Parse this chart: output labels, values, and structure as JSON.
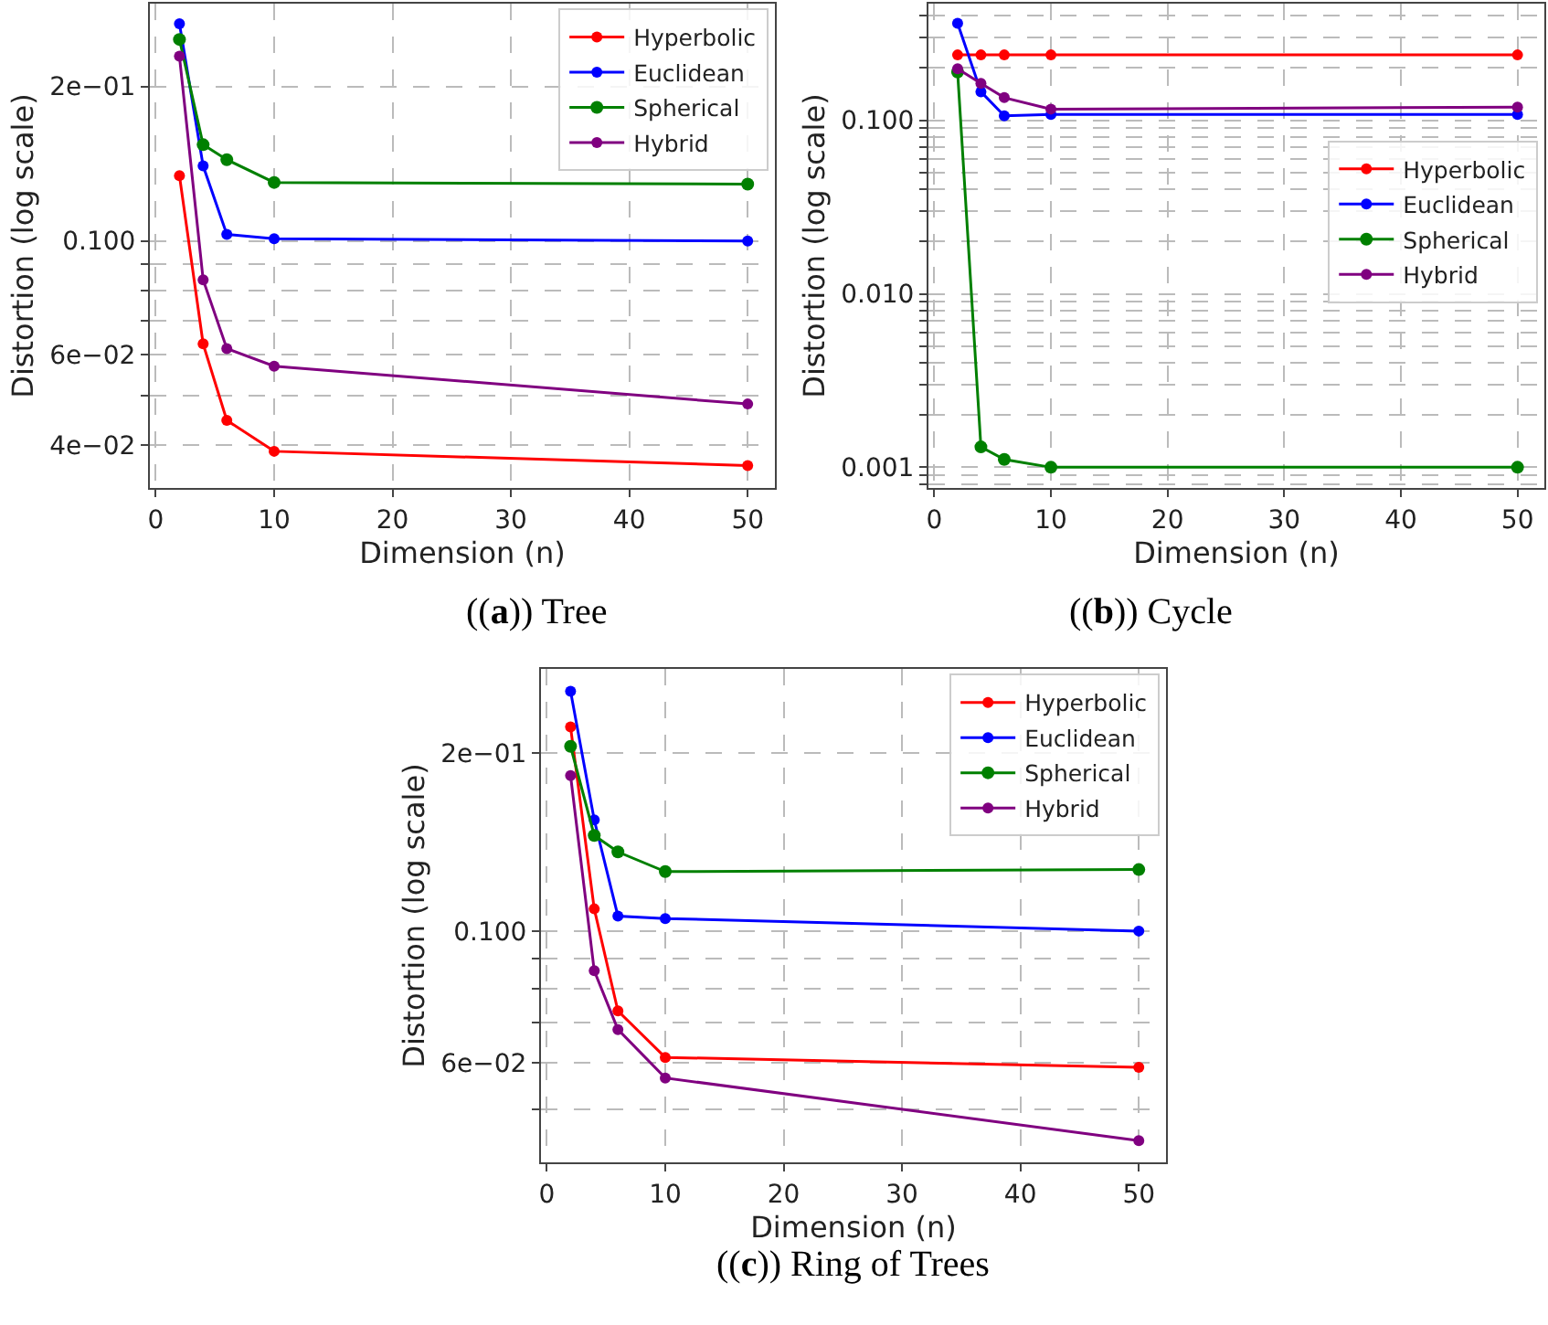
{
  "chart_data": [
    {
      "type": "line",
      "title": "((a)) Tree",
      "xlabel": "Dimension (n)",
      "ylabel": "Distortion (log scale)",
      "log": "y",
      "grid": true,
      "legend": "top right",
      "marker": "circle",
      "line_style": "solid",
      "x": [
        2,
        4,
        6,
        10,
        50
      ],
      "xlim": [
        -0.5,
        52.3
      ],
      "xticks": [
        0,
        10,
        20,
        30,
        40,
        50
      ],
      "ylim": [
        0.033,
        0.29
      ],
      "yticks": [
        {
          "value": 0.04,
          "label": "4e−02"
        },
        {
          "value": 0.05,
          "label": null
        },
        {
          "value": 0.06,
          "label": "6e−02"
        },
        {
          "value": 0.07,
          "label": null
        },
        {
          "value": 0.08,
          "label": null
        },
        {
          "value": 0.09,
          "label": null
        },
        {
          "value": 0.1,
          "label": "0.100"
        },
        {
          "value": 0.2,
          "label": "2e−01"
        }
      ],
      "series": [
        {
          "name": "Hyperbolic",
          "color": "#ff0000",
          "values": [
            0.134,
            0.063,
            0.0447,
            0.0389,
            0.0365
          ]
        },
        {
          "name": "Euclidean",
          "color": "#0000ff",
          "values": [
            0.265,
            0.14,
            0.103,
            0.101,
            0.1
          ]
        },
        {
          "name": "Spherical",
          "color": "#008000",
          "values": [
            0.247,
            0.154,
            0.144,
            0.13,
            0.129
          ]
        },
        {
          "name": "Hybrid",
          "color": "#800080",
          "values": [
            0.229,
            0.084,
            0.0617,
            0.057,
            0.0481
          ]
        }
      ]
    },
    {
      "type": "line",
      "title": "((b)) Cycle",
      "xlabel": "Dimension (n)",
      "ylabel": "Distortion (log scale)",
      "log": "y",
      "grid": true,
      "legend": "right",
      "marker": "circle",
      "line_style": "solid",
      "x": [
        2,
        4,
        6,
        10,
        50
      ],
      "xlim": [
        -0.5,
        52.3
      ],
      "xticks": [
        0,
        10,
        20,
        30,
        40,
        50
      ],
      "ylim": [
        0.00076,
        0.47
      ],
      "yticks": [
        {
          "value": 0.0008,
          "label": null
        },
        {
          "value": 0.0009,
          "label": null
        },
        {
          "value": 0.001,
          "label": "0.001"
        },
        {
          "value": 0.002,
          "label": null
        },
        {
          "value": 0.003,
          "label": null
        },
        {
          "value": 0.004,
          "label": null
        },
        {
          "value": 0.005,
          "label": null
        },
        {
          "value": 0.006,
          "label": null
        },
        {
          "value": 0.007,
          "label": null
        },
        {
          "value": 0.008,
          "label": null
        },
        {
          "value": 0.009,
          "label": null
        },
        {
          "value": 0.01,
          "label": "0.010"
        },
        {
          "value": 0.02,
          "label": null
        },
        {
          "value": 0.03,
          "label": null
        },
        {
          "value": 0.04,
          "label": null
        },
        {
          "value": 0.05,
          "label": null
        },
        {
          "value": 0.06,
          "label": null
        },
        {
          "value": 0.07,
          "label": null
        },
        {
          "value": 0.08,
          "label": null
        },
        {
          "value": 0.09,
          "label": null
        },
        {
          "value": 0.1,
          "label": "0.100"
        },
        {
          "value": 0.2,
          "label": null
        },
        {
          "value": 0.3,
          "label": null
        },
        {
          "value": 0.4,
          "label": null
        }
      ],
      "series": [
        {
          "name": "Hyperbolic",
          "color": "#ff0000",
          "values": [
            0.238,
            0.238,
            0.238,
            0.238,
            0.238
          ]
        },
        {
          "name": "Euclidean",
          "color": "#0000ff",
          "values": [
            0.362,
            0.146,
            0.106,
            0.108,
            0.108
          ]
        },
        {
          "name": "Spherical",
          "color": "#008000",
          "values": [
            0.19,
            0.00131,
            0.00111,
            0.001,
            0.001
          ]
        },
        {
          "name": "Hybrid",
          "color": "#800080",
          "values": [
            0.198,
            0.163,
            0.135,
            0.116,
            0.119
          ]
        }
      ]
    },
    {
      "type": "line",
      "title": "((c)) Ring of Trees",
      "xlabel": "Dimension (n)",
      "ylabel": "Distortion (log scale)",
      "log": "y",
      "grid": true,
      "legend": "top right",
      "marker": "circle",
      "line_style": "solid",
      "x": [
        2,
        4,
        6,
        10,
        50
      ],
      "xlim": [
        -0.5,
        52.3
      ],
      "xticks": [
        0,
        10,
        20,
        30,
        40,
        50
      ],
      "ylim": [
        0.0407,
        0.277
      ],
      "yticks": [
        {
          "value": 0.05,
          "label": null
        },
        {
          "value": 0.06,
          "label": "6e−02"
        },
        {
          "value": 0.07,
          "label": null
        },
        {
          "value": 0.08,
          "label": null
        },
        {
          "value": 0.09,
          "label": null
        },
        {
          "value": 0.1,
          "label": "0.100"
        },
        {
          "value": 0.2,
          "label": "2e−01"
        }
      ],
      "series": [
        {
          "name": "Hyperbolic",
          "color": "#ff0000",
          "values": [
            0.221,
            0.109,
            0.0733,
            0.0612,
            0.0589
          ]
        },
        {
          "name": "Euclidean",
          "color": "#0000ff",
          "values": [
            0.254,
            0.154,
            0.106,
            0.105,
            0.1
          ]
        },
        {
          "name": "Spherical",
          "color": "#008000",
          "values": [
            0.205,
            0.145,
            0.136,
            0.126,
            0.127
          ]
        },
        {
          "name": "Hybrid",
          "color": "#800080",
          "values": [
            0.183,
            0.0857,
            0.0682,
            0.0565,
            0.0443
          ]
        }
      ]
    }
  ]
}
